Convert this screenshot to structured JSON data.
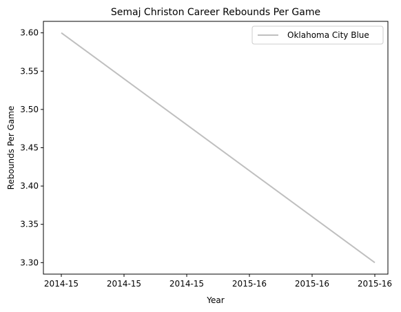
{
  "chart_data": {
    "type": "line",
    "title": "Semaj Christon Career Rebounds Per Game",
    "xlabel": "Year",
    "ylabel": "Rebounds Per Game",
    "x_tick_labels": [
      "2014-15",
      "2014-15",
      "2014-15",
      "2015-16",
      "2015-16",
      "2015-16"
    ],
    "y_ticks": [
      3.3,
      3.35,
      3.4,
      3.45,
      3.5,
      3.55,
      3.6
    ],
    "y_tick_labels": [
      "3.30",
      "3.35",
      "3.40",
      "3.45",
      "3.50",
      "3.55",
      "3.60"
    ],
    "ylim": [
      3.285,
      3.615
    ],
    "series": [
      {
        "name": "Oklahoma City Blue",
        "color": "#bfbfbf",
        "points": [
          {
            "x": "2014-15",
            "y": 3.6
          },
          {
            "x": "2015-16",
            "y": 3.3
          }
        ]
      }
    ],
    "legend_position": "top-right",
    "grid": false
  }
}
